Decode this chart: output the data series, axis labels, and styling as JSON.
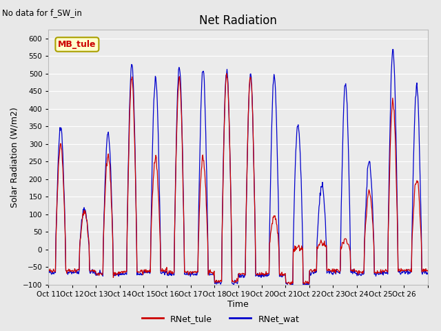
{
  "title": "Net Radiation",
  "subtitle": "No data for f_SW_in",
  "ylabel": "Solar Radiation (W/m2)",
  "xlabel": "Time",
  "legend_label1": "RNet_tule",
  "legend_label2": "RNet_wat",
  "color1": "#cc0000",
  "color2": "#0000cc",
  "inset_label": "MB_tule",
  "inset_bg": "#ffffcc",
  "inset_border": "#aaa000",
  "ylim": [
    -100,
    625
  ],
  "yticks": [
    -100,
    -50,
    0,
    50,
    100,
    150,
    200,
    250,
    300,
    350,
    400,
    450,
    500,
    550,
    600
  ],
  "bg_color": "#e8e8e8",
  "plot_bg": "#ebebeb",
  "n_days": 16,
  "start_day": 11,
  "tick_labels": [
    "Oct 11",
    "Oct 12",
    "Oct 13",
    "Oct 14",
    "Oct 15",
    "Oct 16",
    "Oct 17",
    "Oct 18",
    "Oct 19",
    "Oct 20",
    "Oct 21",
    "Oct 22",
    "Oct 23",
    "Oct 24",
    "Oct 25",
    "Oct 26",
    ""
  ],
  "tule_peaks": [
    300,
    110,
    270,
    490,
    260,
    490,
    260,
    500,
    490,
    95,
    0,
    15,
    30,
    165,
    420,
    200
  ],
  "wat_peaks": [
    350,
    115,
    330,
    530,
    490,
    525,
    510,
    510,
    495,
    490,
    355,
    185,
    470,
    250,
    570,
    460
  ],
  "tule_nights": [
    -60,
    -60,
    -70,
    -65,
    -60,
    -65,
    -65,
    -90,
    -70,
    -70,
    -95,
    -60,
    -60,
    -65,
    -60,
    -60
  ],
  "wat_nights": [
    -65,
    -65,
    -70,
    -70,
    -65,
    -70,
    -70,
    -95,
    -75,
    -75,
    -100,
    -65,
    -65,
    -70,
    -65,
    -65
  ]
}
